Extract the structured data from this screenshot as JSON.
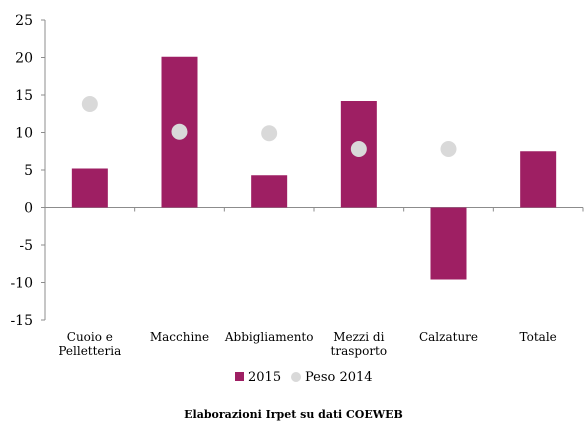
{
  "source_note": "Elaborazioni Irpet su dati COEWEB",
  "chart_data": {
    "type": "bar",
    "categories": [
      [
        "Cuoio e",
        "Pelletteria"
      ],
      [
        "Macchine"
      ],
      [
        "Abbigliamento"
      ],
      [
        "Mezzi di",
        "trasporto"
      ],
      [
        "Calzature"
      ],
      [
        "Totale"
      ]
    ],
    "series": [
      {
        "name": "2015",
        "type": "bar",
        "color": "#9e1f63",
        "values": [
          5.2,
          20.1,
          4.3,
          14.2,
          -9.6,
          7.5
        ]
      },
      {
        "name": "Peso 2014",
        "type": "scatter",
        "color": "#d9d9d9",
        "values": [
          13.8,
          10.1,
          9.9,
          7.8,
          7.8,
          null
        ]
      }
    ],
    "ylim": [
      -15,
      25
    ],
    "yticks": [
      -15,
      -10,
      -5,
      0,
      5,
      10,
      15,
      20,
      25
    ],
    "grid": false,
    "legend": "bottom-center"
  }
}
